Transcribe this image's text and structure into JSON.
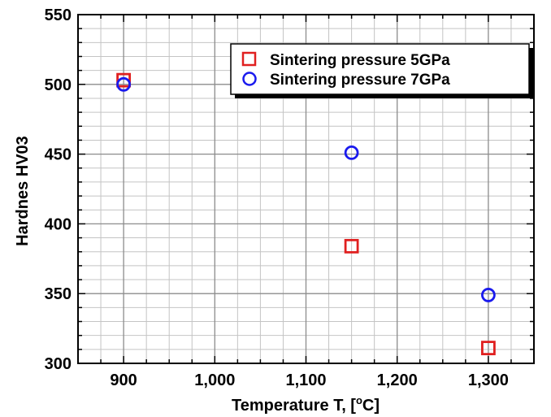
{
  "chart_data": {
    "type": "scatter",
    "title": "",
    "xlabel": "Temperature T, [",
    "xlabel_sup": "o",
    "xlabel_unit": "C]",
    "ylabel": "Hardnes HV03",
    "xlim": [
      850,
      1350
    ],
    "ylim": [
      300,
      550
    ],
    "x_ticks": [
      900,
      1000,
      1100,
      1200,
      1300
    ],
    "x_tick_labels": [
      "900",
      "1,000",
      "1,100",
      "1,200",
      "1,300"
    ],
    "y_ticks": [
      300,
      350,
      400,
      450,
      500,
      550
    ],
    "y_tick_labels": [
      "300",
      "350",
      "400",
      "450",
      "500",
      "550"
    ],
    "grid": true,
    "legend_position": "top-right",
    "series": [
      {
        "name": "Sintering pressure 5GPa",
        "marker": "square",
        "color": "#e02020",
        "x": [
          900,
          1150,
          1300
        ],
        "y": [
          503,
          384,
          311
        ]
      },
      {
        "name": "Sintering pressure 7GPa",
        "marker": "circle",
        "color": "#1a1aee",
        "x": [
          900,
          1150,
          1300
        ],
        "y": [
          500,
          451,
          349
        ]
      }
    ]
  }
}
